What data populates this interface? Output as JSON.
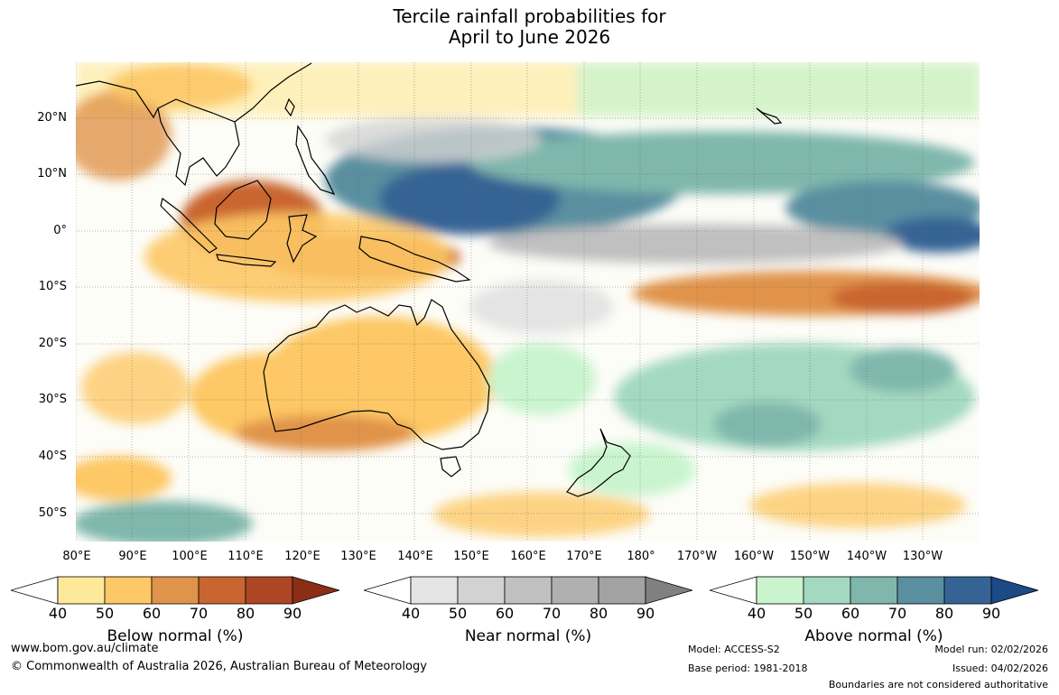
{
  "title_line1": "Tercile rainfall probabilities for",
  "title_line2": "April to June 2026",
  "lat_labels": [
    "20°N",
    "10°N",
    "0°",
    "10°S",
    "20°S",
    "30°S",
    "40°S",
    "50°S"
  ],
  "lon_labels": [
    "80°E",
    "90°E",
    "100°E",
    "110°E",
    "120°E",
    "130°E",
    "140°E",
    "150°E",
    "160°E",
    "170°E",
    "180°",
    "170°W",
    "160°W",
    "150°W",
    "140°W",
    "130°W"
  ],
  "colorbars": {
    "below": {
      "label": "Below normal (%)",
      "ticks": [
        "40",
        "50",
        "60",
        "70",
        "80",
        "90"
      ],
      "colors": [
        "#fee99a",
        "#fdc865",
        "#e0934a",
        "#c9652f",
        "#ad4624",
        "#8a2f16"
      ]
    },
    "near": {
      "label": "Near normal (%)",
      "ticks": [
        "40",
        "50",
        "60",
        "70",
        "80",
        "90"
      ],
      "colors": [
        "#e4e4e4",
        "#d2d2d2",
        "#c0c0c0",
        "#b0b0b0",
        "#a2a2a2",
        "#808080"
      ]
    },
    "above": {
      "label": "Above normal (%)",
      "ticks": [
        "40",
        "50",
        "60",
        "70",
        "80",
        "90"
      ],
      "colors": [
        "#c9f4ce",
        "#a4d9c1",
        "#7fb7ac",
        "#5a8fa0",
        "#356494",
        "#1b4a85"
      ]
    }
  },
  "footer": {
    "url": "www.bom.gov.au/climate",
    "copyright": "© Commonwealth of Australia 2026, Australian Bureau of Meteorology",
    "model": "Model: ACCESS-S2",
    "base_period": "Base period: 1981-2018",
    "model_run": "Model run: 02/02/2026",
    "issued": "Issued: 04/02/2026",
    "boundaries": "Boundaries are not considered authoritative"
  }
}
